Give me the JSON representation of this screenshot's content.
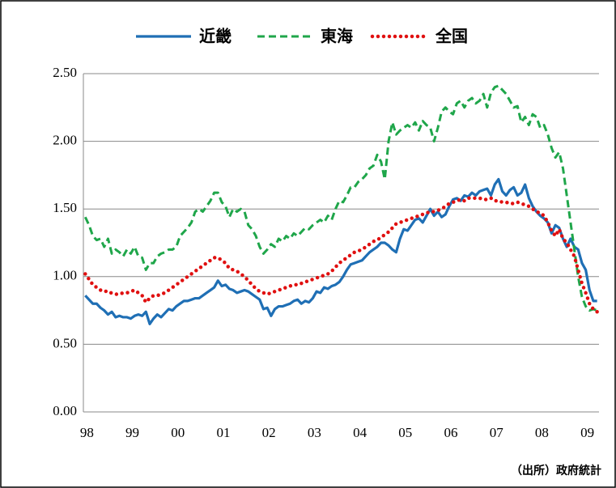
{
  "chart_data": {
    "type": "line",
    "source": "（出所）政府統計",
    "categories": [
      "98",
      null,
      null,
      null,
      null,
      null,
      null,
      null,
      null,
      null,
      null,
      null,
      "99",
      null,
      null,
      null,
      null,
      null,
      null,
      null,
      null,
      null,
      null,
      null,
      "00",
      null,
      null,
      null,
      null,
      null,
      null,
      null,
      null,
      null,
      null,
      null,
      "01",
      null,
      null,
      null,
      null,
      null,
      null,
      null,
      null,
      null,
      null,
      null,
      "02",
      null,
      null,
      null,
      null,
      null,
      null,
      null,
      null,
      null,
      null,
      null,
      "03",
      null,
      null,
      null,
      null,
      null,
      null,
      null,
      null,
      null,
      null,
      null,
      "04",
      null,
      null,
      null,
      null,
      null,
      null,
      null,
      null,
      null,
      null,
      null,
      "05",
      null,
      null,
      null,
      null,
      null,
      null,
      null,
      null,
      null,
      null,
      null,
      "06",
      null,
      null,
      null,
      null,
      null,
      null,
      null,
      null,
      null,
      null,
      null,
      "07",
      null,
      null,
      null,
      null,
      null,
      null,
      null,
      null,
      null,
      null,
      null,
      "08",
      null,
      null,
      null,
      null,
      null,
      null,
      null,
      null,
      null,
      null,
      null,
      "09",
      null,
      null,
      null
    ],
    "ylim": [
      0,
      2.5
    ],
    "yticks": [
      {
        "value": 0,
        "label": "0.00"
      },
      {
        "value": 0.5,
        "label": "0.50"
      },
      {
        "value": 1,
        "label": "1.00"
      },
      {
        "value": 1.5,
        "label": "1.50"
      },
      {
        "value": 2,
        "label": "2.00"
      },
      {
        "value": 2.5,
        "label": "2.50"
      }
    ],
    "grid": true,
    "legend": "top",
    "series": [
      {
        "name": "近畿",
        "color": "#1f6fb5",
        "style": "solid",
        "values": [
          0.86,
          0.83,
          0.8,
          0.8,
          0.77,
          0.75,
          0.72,
          0.74,
          0.7,
          0.71,
          0.7,
          0.7,
          0.69,
          0.71,
          0.72,
          0.71,
          0.74,
          0.65,
          0.69,
          0.72,
          0.7,
          0.73,
          0.76,
          0.75,
          0.78,
          0.8,
          0.82,
          0.82,
          0.83,
          0.84,
          0.84,
          0.86,
          0.88,
          0.9,
          0.92,
          0.97,
          0.93,
          0.94,
          0.91,
          0.9,
          0.88,
          0.89,
          0.9,
          0.89,
          0.87,
          0.85,
          0.83,
          0.76,
          0.77,
          0.71,
          0.76,
          0.78,
          0.78,
          0.79,
          0.8,
          0.82,
          0.83,
          0.8,
          0.82,
          0.81,
          0.84,
          0.89,
          0.88,
          0.92,
          0.91,
          0.93,
          0.94,
          0.96,
          1.0,
          1.05,
          1.09,
          1.1,
          1.11,
          1.12,
          1.15,
          1.18,
          1.2,
          1.22,
          1.25,
          1.25,
          1.23,
          1.2,
          1.18,
          1.28,
          1.35,
          1.34,
          1.38,
          1.42,
          1.43,
          1.4,
          1.45,
          1.5,
          1.45,
          1.48,
          1.44,
          1.46,
          1.52,
          1.57,
          1.58,
          1.56,
          1.6,
          1.59,
          1.62,
          1.6,
          1.63,
          1.64,
          1.65,
          1.6,
          1.68,
          1.72,
          1.63,
          1.6,
          1.64,
          1.66,
          1.6,
          1.62,
          1.68,
          1.58,
          1.52,
          1.48,
          1.45,
          1.43,
          1.4,
          1.32,
          1.38,
          1.36,
          1.28,
          1.22,
          1.28,
          1.22,
          1.2,
          1.1,
          1.05,
          0.9,
          0.82,
          0.82
        ]
      },
      {
        "name": "東海",
        "color": "#1fa64a",
        "style": "dashed",
        "values": [
          1.44,
          1.38,
          1.3,
          1.27,
          1.28,
          1.22,
          1.28,
          1.17,
          1.2,
          1.18,
          1.15,
          1.2,
          1.17,
          1.22,
          1.15,
          1.14,
          1.05,
          1.1,
          1.1,
          1.15,
          1.17,
          1.18,
          1.2,
          1.2,
          1.22,
          1.3,
          1.33,
          1.36,
          1.4,
          1.48,
          1.5,
          1.48,
          1.52,
          1.56,
          1.62,
          1.62,
          1.55,
          1.52,
          1.44,
          1.5,
          1.48,
          1.5,
          1.48,
          1.38,
          1.35,
          1.3,
          1.22,
          1.17,
          1.2,
          1.24,
          1.22,
          1.28,
          1.26,
          1.3,
          1.28,
          1.32,
          1.3,
          1.33,
          1.36,
          1.35,
          1.38,
          1.4,
          1.42,
          1.4,
          1.45,
          1.42,
          1.5,
          1.56,
          1.55,
          1.6,
          1.66,
          1.66,
          1.7,
          1.72,
          1.75,
          1.8,
          1.82,
          1.9,
          1.85,
          1.72,
          2.0,
          2.14,
          2.05,
          2.08,
          2.1,
          2.12,
          2.1,
          2.14,
          2.08,
          2.15,
          2.12,
          2.1,
          2.0,
          2.1,
          2.22,
          2.25,
          2.22,
          2.2,
          2.28,
          2.3,
          2.25,
          2.3,
          2.32,
          2.28,
          2.3,
          2.35,
          2.25,
          2.36,
          2.4,
          2.41,
          2.38,
          2.35,
          2.3,
          2.25,
          2.26,
          2.14,
          2.18,
          2.12,
          2.2,
          2.18,
          2.1,
          2.12,
          2.05,
          1.95,
          1.88,
          1.92,
          1.8,
          1.6,
          1.4,
          1.2,
          1.0,
          0.85,
          0.78,
          0.75,
          0.76,
          0.75
        ]
      },
      {
        "name": "全国",
        "color": "#e01010",
        "style": "dotted",
        "values": [
          1.02,
          0.98,
          0.94,
          0.92,
          0.9,
          0.9,
          0.88,
          0.88,
          0.87,
          0.87,
          0.88,
          0.88,
          0.89,
          0.9,
          0.88,
          0.86,
          0.81,
          0.84,
          0.86,
          0.86,
          0.87,
          0.88,
          0.9,
          0.92,
          0.94,
          0.96,
          0.98,
          1.0,
          1.02,
          1.04,
          1.06,
          1.08,
          1.1,
          1.12,
          1.14,
          1.14,
          1.12,
          1.1,
          1.06,
          1.05,
          1.04,
          1.02,
          1.0,
          0.97,
          0.94,
          0.91,
          0.89,
          0.88,
          0.87,
          0.88,
          0.89,
          0.9,
          0.91,
          0.92,
          0.93,
          0.94,
          0.94,
          0.95,
          0.96,
          0.97,
          0.98,
          0.99,
          1.0,
          1.01,
          1.02,
          1.04,
          1.07,
          1.1,
          1.12,
          1.14,
          1.16,
          1.18,
          1.19,
          1.2,
          1.22,
          1.24,
          1.26,
          1.27,
          1.29,
          1.31,
          1.33,
          1.36,
          1.39,
          1.4,
          1.41,
          1.42,
          1.43,
          1.44,
          1.45,
          1.46,
          1.47,
          1.48,
          1.48,
          1.49,
          1.5,
          1.52,
          1.54,
          1.55,
          1.56,
          1.57,
          1.56,
          1.58,
          1.58,
          1.58,
          1.58,
          1.57,
          1.57,
          1.58,
          1.56,
          1.56,
          1.55,
          1.55,
          1.54,
          1.54,
          1.55,
          1.54,
          1.53,
          1.52,
          1.5,
          1.48,
          1.47,
          1.45,
          1.4,
          1.34,
          1.3,
          1.35,
          1.28,
          1.25,
          1.2,
          1.15,
          1.05,
          0.95,
          0.88,
          0.8,
          0.76,
          0.74
        ]
      }
    ]
  }
}
